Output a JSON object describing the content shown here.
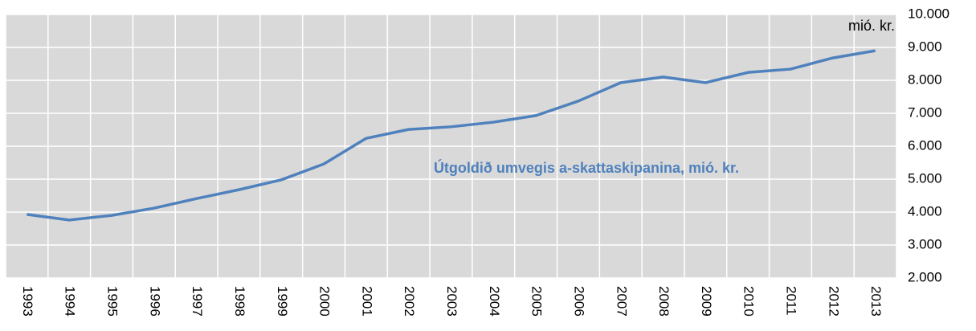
{
  "chart_data": {
    "type": "line",
    "unit_label": "mió. kr.",
    "annotation": "Útgoldið umvegis a-skattaskipanina, mió. kr.",
    "categories": [
      "1993",
      "1994",
      "1995",
      "1996",
      "1997",
      "1998",
      "1999",
      "2000",
      "2001",
      "2002",
      "2003",
      "2004",
      "2005",
      "2006",
      "2007",
      "2008",
      "2009",
      "2010",
      "2011",
      "2012",
      "2013"
    ],
    "series": [
      {
        "name": "Útgoldið umvegis a-skattaskipanina, mió. kr.",
        "color": "#4f81bd",
        "values": [
          3930,
          3760,
          3900,
          4120,
          4410,
          4680,
          4980,
          5460,
          6240,
          6510,
          6590,
          6730,
          6930,
          7370,
          7930,
          8100,
          7930,
          8240,
          8340,
          8680,
          8900
        ]
      }
    ],
    "ylim": [
      2000,
      10000
    ],
    "yticks": [
      {
        "value": 2000,
        "label": "2.000"
      },
      {
        "value": 3000,
        "label": "3.000"
      },
      {
        "value": 4000,
        "label": "4.000"
      },
      {
        "value": 5000,
        "label": "5.000"
      },
      {
        "value": 6000,
        "label": "6.000"
      },
      {
        "value": 7000,
        "label": "7.000"
      },
      {
        "value": 8000,
        "label": "8.000"
      },
      {
        "value": 9000,
        "label": "9.000"
      },
      {
        "value": 10000,
        "label": "10.000"
      }
    ],
    "grid": true,
    "background": "#d9d9d9"
  }
}
